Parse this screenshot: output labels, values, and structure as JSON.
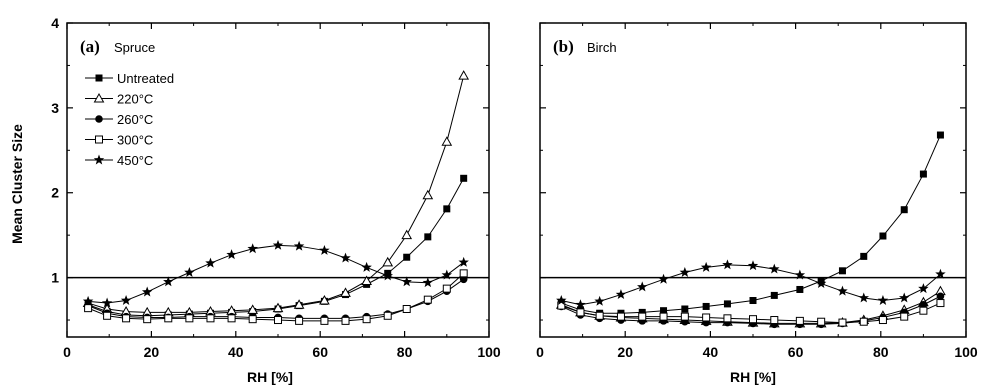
{
  "chart_data": [
    {
      "type": "line",
      "panel_letter": "(a)",
      "title": "Spruce",
      "xlabel": "RH [%]",
      "ylabel": "Mean Cluster Size",
      "xlim": [
        0,
        100
      ],
      "ylim": [
        0.3,
        4
      ],
      "xticks": [
        0,
        20,
        40,
        60,
        80,
        100
      ],
      "yticks": [
        1,
        2,
        3,
        4
      ],
      "reference_line_y": 1,
      "grid": false,
      "legend_position": "top-left",
      "x": [
        5,
        9.5,
        14,
        19,
        24,
        29,
        34,
        39,
        44,
        50,
        55,
        61,
        66,
        71,
        76,
        80.5,
        85.5,
        90,
        94
      ],
      "series": [
        {
          "name": "Untreated",
          "marker": "filled-square",
          "values": [
            0.68,
            0.6,
            0.56,
            0.55,
            0.56,
            0.57,
            0.58,
            0.59,
            0.6,
            0.63,
            0.67,
            0.72,
            0.8,
            0.92,
            1.05,
            1.24,
            1.48,
            1.81,
            2.17
          ]
        },
        {
          "name": "220°C",
          "marker": "open-triangle",
          "values": [
            0.7,
            0.63,
            0.6,
            0.59,
            0.59,
            0.59,
            0.6,
            0.61,
            0.62,
            0.64,
            0.68,
            0.73,
            0.82,
            0.96,
            1.18,
            1.5,
            1.97,
            2.6,
            3.38
          ]
        },
        {
          "name": "260°C",
          "marker": "filled-circle",
          "values": [
            0.67,
            0.58,
            0.54,
            0.53,
            0.53,
            0.54,
            0.54,
            0.54,
            0.53,
            0.53,
            0.52,
            0.52,
            0.52,
            0.54,
            0.57,
            0.63,
            0.72,
            0.84,
            0.98
          ]
        },
        {
          "name": "300°C",
          "marker": "open-square",
          "values": [
            0.64,
            0.55,
            0.52,
            0.51,
            0.52,
            0.52,
            0.52,
            0.52,
            0.51,
            0.5,
            0.49,
            0.49,
            0.49,
            0.51,
            0.55,
            0.63,
            0.74,
            0.87,
            1.05
          ]
        },
        {
          "name": "450°C",
          "marker": "filled-star",
          "values": [
            0.72,
            0.7,
            0.73,
            0.83,
            0.95,
            1.06,
            1.17,
            1.27,
            1.34,
            1.38,
            1.37,
            1.32,
            1.23,
            1.12,
            1.02,
            0.95,
            0.94,
            1.03,
            1.18
          ]
        }
      ]
    },
    {
      "type": "line",
      "panel_letter": "(b)",
      "title": "Birch",
      "xlabel": "RH [%]",
      "ylabel": "",
      "xlim": [
        0,
        100
      ],
      "ylim": [
        0.3,
        4
      ],
      "xticks": [
        0,
        20,
        40,
        60,
        80,
        100
      ],
      "yticks": [
        1,
        2,
        3,
        4
      ],
      "reference_line_y": 1,
      "grid": false,
      "x": [
        5,
        9.5,
        14,
        19,
        24,
        29,
        34,
        39,
        44,
        50,
        55,
        61,
        66,
        71,
        76,
        80.5,
        85.5,
        90,
        94
      ],
      "series": [
        {
          "name": "Untreated",
          "marker": "filled-square",
          "values": [
            0.7,
            0.62,
            0.58,
            0.58,
            0.59,
            0.61,
            0.63,
            0.66,
            0.69,
            0.73,
            0.79,
            0.86,
            0.96,
            1.08,
            1.25,
            1.49,
            1.8,
            2.22,
            2.68
          ]
        },
        {
          "name": "220°C",
          "marker": "open-triangle",
          "values": [
            0.68,
            0.59,
            0.55,
            0.53,
            0.52,
            0.51,
            0.5,
            0.49,
            0.48,
            0.47,
            0.46,
            0.46,
            0.46,
            0.47,
            0.5,
            0.55,
            0.62,
            0.71,
            0.84
          ]
        },
        {
          "name": "260°C",
          "marker": "filled-circle",
          "values": [
            0.66,
            0.56,
            0.52,
            0.5,
            0.49,
            0.49,
            0.48,
            0.47,
            0.47,
            0.46,
            0.45,
            0.45,
            0.45,
            0.46,
            0.49,
            0.53,
            0.59,
            0.68,
            0.78
          ]
        },
        {
          "name": "300°C",
          "marker": "open-square",
          "values": [
            0.67,
            0.59,
            0.55,
            0.54,
            0.54,
            0.54,
            0.54,
            0.53,
            0.52,
            0.51,
            0.5,
            0.49,
            0.48,
            0.47,
            0.48,
            0.5,
            0.54,
            0.61,
            0.7
          ]
        },
        {
          "name": "450°C",
          "marker": "filled-star",
          "values": [
            0.73,
            0.68,
            0.72,
            0.8,
            0.89,
            0.98,
            1.06,
            1.12,
            1.15,
            1.14,
            1.1,
            1.03,
            0.93,
            0.84,
            0.76,
            0.73,
            0.76,
            0.87,
            1.04
          ]
        }
      ]
    }
  ]
}
